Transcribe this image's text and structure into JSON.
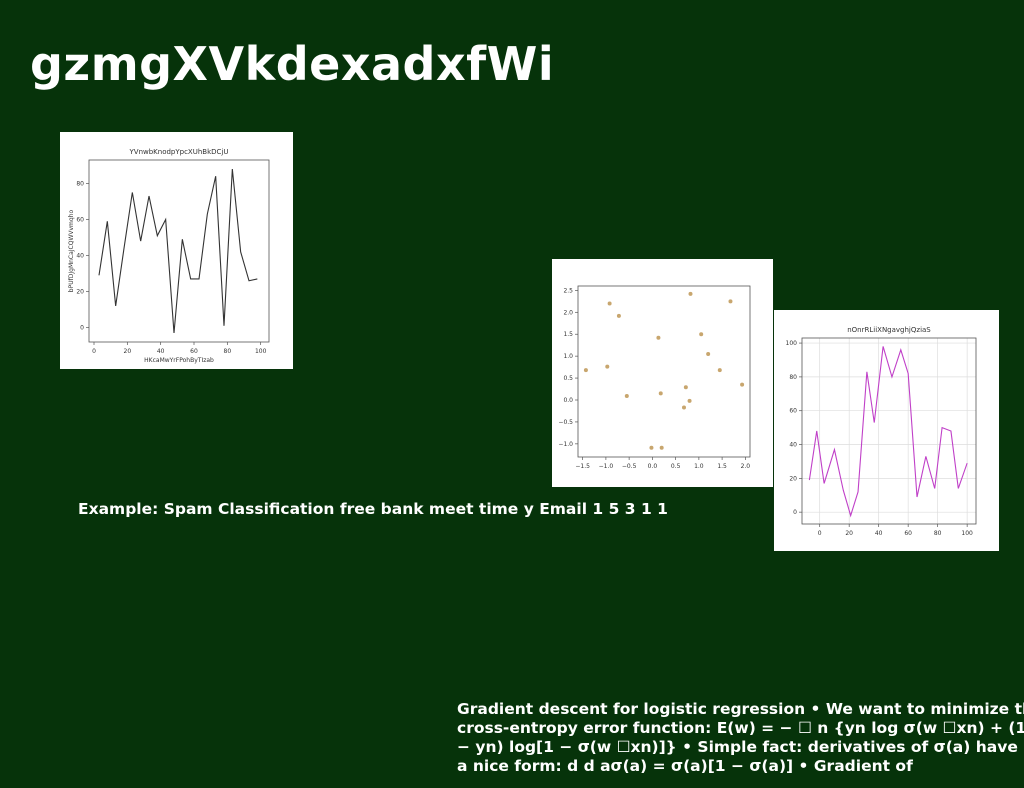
{
  "slide": {
    "title": "gzmgXVkdexadxfWi",
    "caption": "Example: Spam Classification free bank meet time y Email 1 5 3 1 1",
    "body_lines": [
      "Gradient descent for logistic regression • We want to minimize the",
      "cross-entropy error function: E(w) = − ☐ n {yn log σ(w ☐xn) + (1",
      "− yn) log[1 − σ(w ☐xn)]} • Simple fact: derivatives of σ(a) have",
      "a nice form: d d aσ(a) = σ(a)[1 − σ(a)] • Gradient of"
    ]
  },
  "chart_data": [
    {
      "type": "line",
      "title": "YVnwbKnodpYpcXUhBkDCjU",
      "xlabel": "HKcaMwYrFPohByTIzab",
      "ylabel": "bPUfDJgMnCaJCQWVvmqho",
      "xlim": [
        -3,
        105
      ],
      "ylim": [
        -8,
        93
      ],
      "xticks": [
        0,
        20,
        40,
        60,
        80,
        100
      ],
      "yticks": [
        0,
        20,
        40,
        60,
        80
      ],
      "grid": false,
      "color": "#333333",
      "x": [
        3,
        8,
        13,
        18,
        23,
        28,
        33,
        38,
        43,
        48,
        53,
        58,
        63,
        68,
        73,
        78,
        83,
        88,
        93,
        98
      ],
      "y": [
        29,
        59,
        12,
        44,
        75,
        48,
        73,
        51,
        60,
        -3,
        49,
        27,
        27,
        63,
        84,
        1,
        88,
        42,
        26,
        27
      ]
    },
    {
      "type": "scatter",
      "title": "",
      "xlabel": "",
      "ylabel": "",
      "xlim": [
        -1.6,
        2.1
      ],
      "ylim": [
        -1.3,
        2.6
      ],
      "xticks": [
        -1.5,
        -1.0,
        -0.5,
        0.0,
        0.5,
        1.0,
        1.5,
        2.0
      ],
      "yticks": [
        -1.0,
        -0.5,
        0.0,
        0.5,
        1.0,
        1.5,
        2.0,
        2.5
      ],
      "xtick_labels": [
        "−1.5",
        "−1.0",
        "−0.5",
        "0.0",
        "0.5",
        "1.0",
        "1.5",
        "2.0"
      ],
      "ytick_labels": [
        "−1.0",
        "−0.5",
        "0.0",
        "0.5",
        "1.0",
        "1.5",
        "2.0",
        "2.5"
      ],
      "grid": false,
      "color": "#c8a66e",
      "x": [
        -1.43,
        -0.97,
        -0.92,
        -0.72,
        -0.55,
        -0.02,
        0.13,
        0.18,
        0.2,
        0.68,
        0.72,
        0.8,
        0.82,
        1.05,
        1.2,
        1.45,
        1.68,
        1.93
      ],
      "y": [
        0.68,
        0.76,
        2.2,
        1.92,
        0.09,
        -1.09,
        1.42,
        0.15,
        -1.09,
        -0.17,
        0.29,
        -0.02,
        2.42,
        1.5,
        1.05,
        0.68,
        2.25,
        0.35
      ]
    },
    {
      "type": "line",
      "title": "nOnrRLiiXNgavghjQziaS",
      "xlabel": "",
      "ylabel": "",
      "xlim": [
        -12,
        106
      ],
      "ylim": [
        -7,
        103
      ],
      "xticks": [
        0,
        20,
        40,
        60,
        80,
        100
      ],
      "yticks": [
        0,
        20,
        40,
        60,
        80,
        100
      ],
      "grid": true,
      "color": "#c040c8",
      "x": [
        -7,
        -2,
        3,
        10,
        16,
        21,
        26,
        32,
        37,
        43,
        49,
        55,
        60,
        66,
        72,
        78,
        83,
        89,
        94,
        100
      ],
      "y": [
        19,
        48,
        17,
        37,
        13,
        -2,
        12,
        83,
        53,
        98,
        80,
        96,
        82,
        9,
        33,
        14,
        50,
        48,
        14,
        29
      ]
    }
  ]
}
